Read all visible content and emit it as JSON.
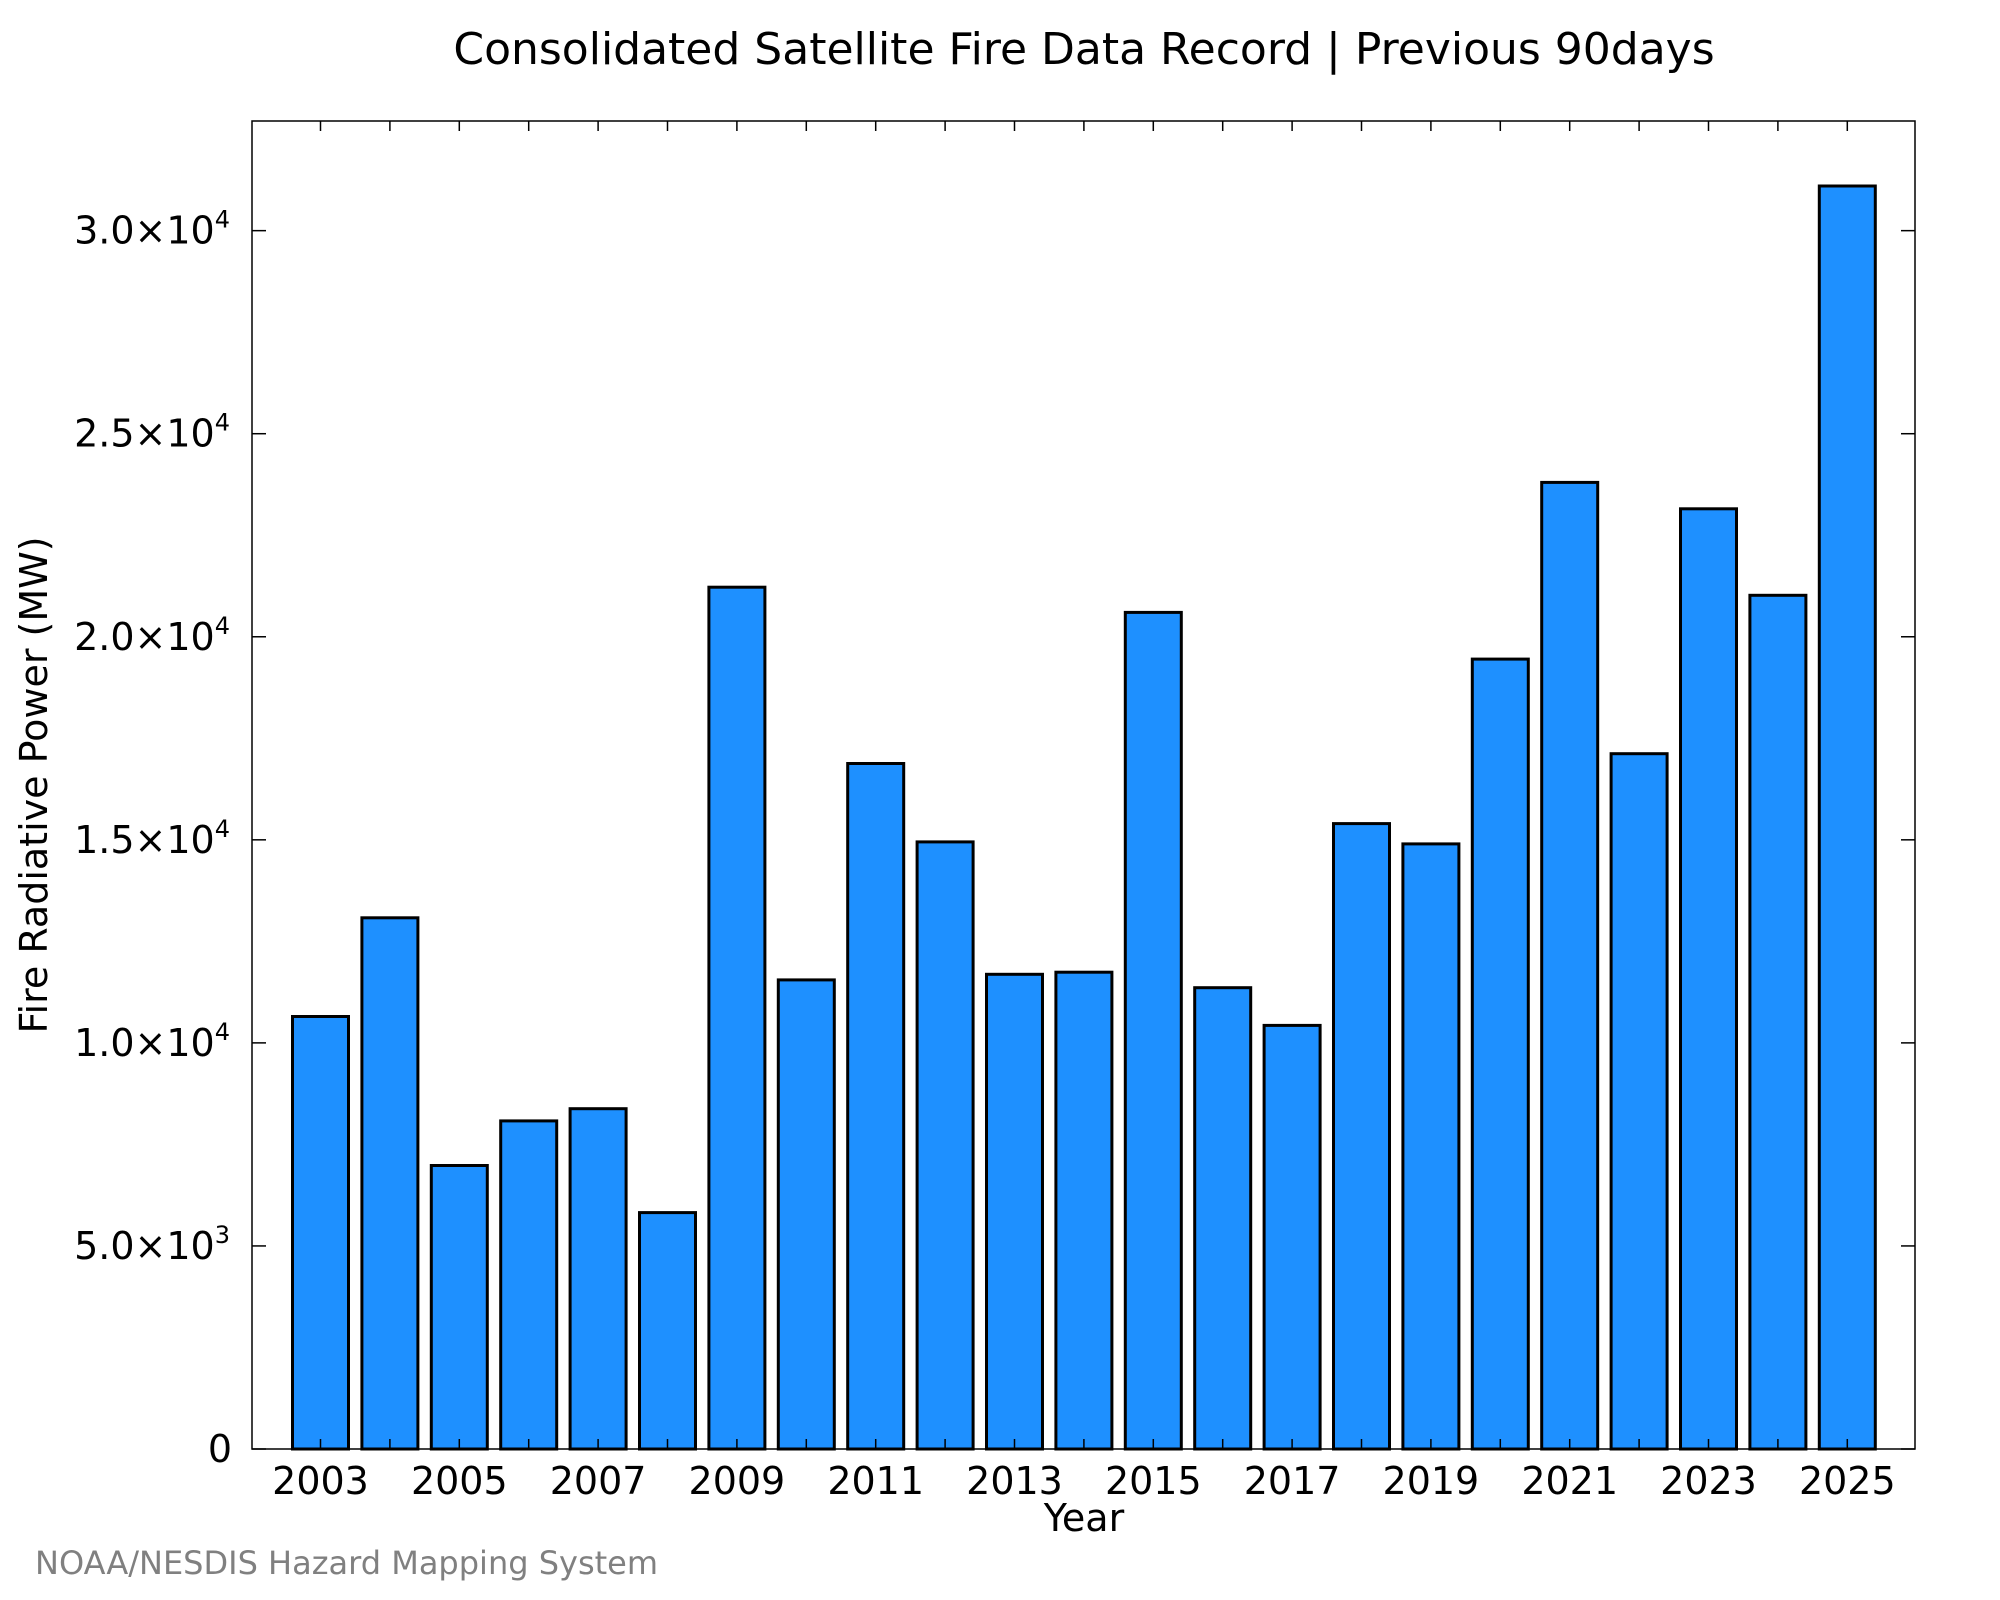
{
  "chart_data": {
    "type": "bar",
    "title": "Consolidated Satellite Fire Data Record | Previous 90days",
    "xlabel": "Year",
    "ylabel": "Fire Radiative Power (MW)",
    "categories": [
      "2003",
      "2004",
      "2005",
      "2006",
      "2007",
      "2008",
      "2009",
      "2010",
      "2011",
      "2012",
      "2013",
      "2014",
      "2015",
      "2016",
      "2017",
      "2018",
      "2019",
      "2020",
      "2021",
      "2022",
      "2023",
      "2024",
      "2025"
    ],
    "values": [
      10650,
      13080,
      6980,
      8080,
      8380,
      5820,
      21220,
      11550,
      16880,
      14950,
      11690,
      11740,
      20600,
      11360,
      10430,
      15400,
      14900,
      19450,
      23800,
      17120,
      23150,
      21020,
      31100
    ],
    "ylim": [
      0,
      32700
    ],
    "x_tick_labels": [
      "2003",
      "2005",
      "2007",
      "2009",
      "2011",
      "2013",
      "2015",
      "2017",
      "2019",
      "2021",
      "2023",
      "2025"
    ],
    "y_ticks": [
      {
        "value": 0,
        "mantissa": "0",
        "exponent": ""
      },
      {
        "value": 5000,
        "mantissa": "5.0×10",
        "exponent": "3"
      },
      {
        "value": 10000,
        "mantissa": "1.0×10",
        "exponent": "4"
      },
      {
        "value": 15000,
        "mantissa": "1.5×10",
        "exponent": "4"
      },
      {
        "value": 20000,
        "mantissa": "2.0×10",
        "exponent": "4"
      },
      {
        "value": 25000,
        "mantissa": "2.5×10",
        "exponent": "4"
      },
      {
        "value": 30000,
        "mantissa": "3.0×10",
        "exponent": "4"
      }
    ],
    "bar_color": "#1e90ff",
    "grid": false,
    "legend": "none"
  },
  "footer": {
    "credit": "NOAA/NESDIS Hazard Mapping System"
  },
  "colors": {
    "bar_fill": "#1e90ff",
    "bar_edge": "#000000",
    "credit_text": "#808080"
  }
}
